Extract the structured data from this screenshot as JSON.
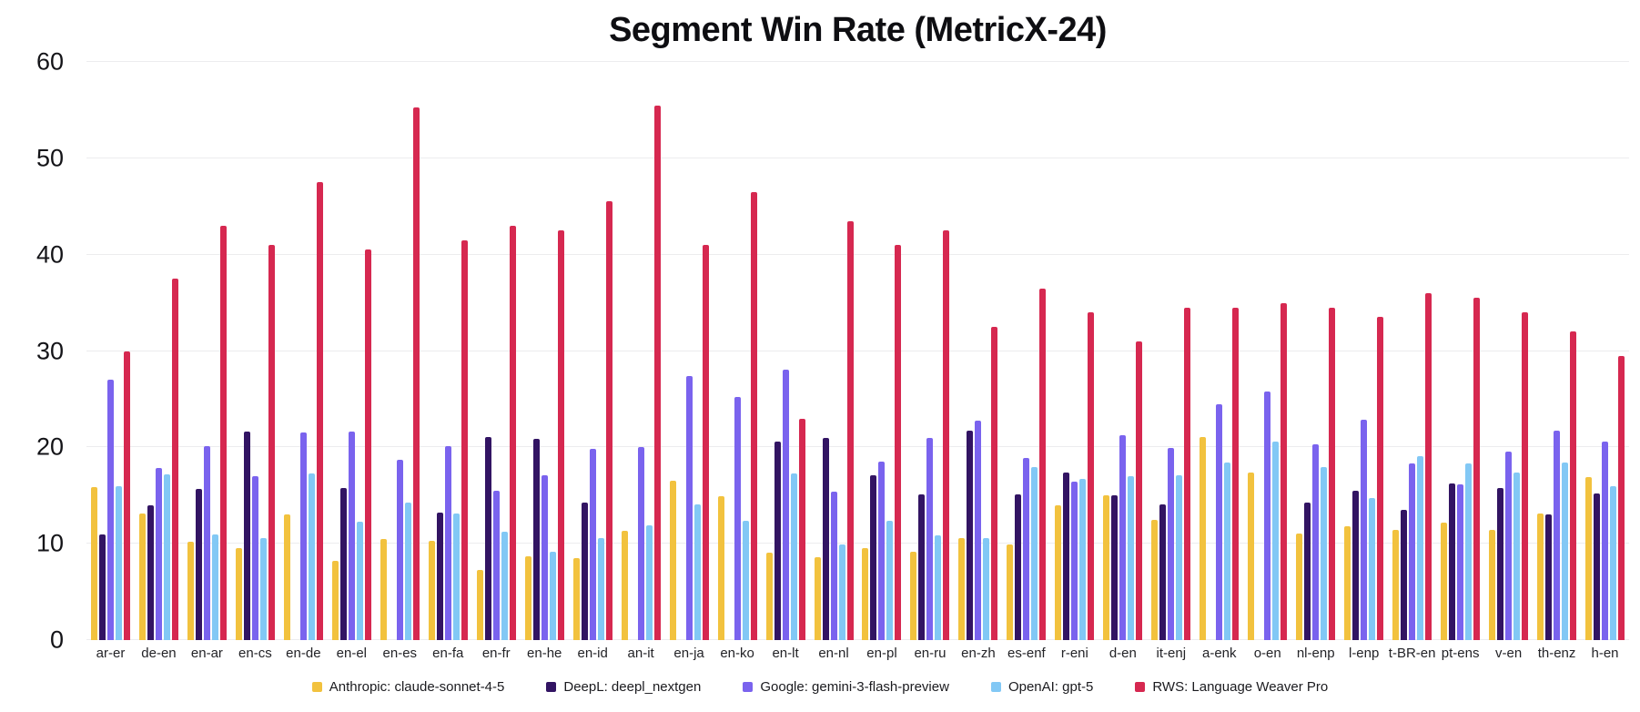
{
  "title": "Segment Win Rate (MetricX-24)",
  "chart_data": {
    "type": "bar",
    "title": "Segment Win Rate (MetricX-24)",
    "ylim": [
      0,
      60
    ],
    "yticks": [
      0,
      10,
      20,
      30,
      40,
      50,
      60
    ],
    "grid": true,
    "legend_position": "bottom",
    "categories": [
      "ar-er",
      "de-en",
      "en-ar",
      "en-cs",
      "en-de",
      "en-el",
      "en-es",
      "en-fa",
      "en-fr",
      "en-he",
      "en-id",
      "an-it",
      "en-ja",
      "en-ko",
      "en-lt",
      "en-nl",
      "en-pl",
      "en-ru",
      "en-zh",
      "es-enf",
      "r-eni",
      "d-en",
      "it-enj",
      "a-enk",
      "o-en",
      "nl-enp",
      "l-enp",
      "t-BR-en",
      "pt-ens",
      "v-en",
      "th-enz",
      "h-en"
    ],
    "series": [
      {
        "name": "Anthropic: claude-sonnet-4-5",
        "color": "#F2C23E",
        "values": [
          15.9,
          13.1,
          10.2,
          9.5,
          13.0,
          8.2,
          10.5,
          10.3,
          7.3,
          8.7,
          8.5,
          11.3,
          16.5,
          14.9,
          9.1,
          8.6,
          9.5,
          9.2,
          10.6,
          9.9,
          14.0,
          15.0,
          12.5,
          21.1,
          17.4,
          11.1,
          11.8,
          11.4,
          12.2,
          11.4,
          13.1,
          16.9
        ]
      },
      {
        "name": "DeepL: deepl_nextgen",
        "color": "#321463",
        "values": [
          11.0,
          14.0,
          15.7,
          21.6,
          null,
          15.8,
          null,
          13.2,
          21.1,
          20.9,
          14.3,
          null,
          null,
          null,
          20.6,
          21.0,
          17.1,
          15.1,
          21.7,
          15.1,
          17.4,
          15.0,
          14.1,
          null,
          null,
          14.3,
          15.5,
          13.5,
          16.3,
          15.8,
          13.0,
          15.2
        ]
      },
      {
        "name": "Google: gemini-3-flash-preview",
        "color": "#7A63EE",
        "values": [
          27.0,
          17.9,
          20.1,
          17.0,
          21.5,
          21.6,
          18.7,
          20.1,
          15.5,
          17.1,
          19.8,
          20.0,
          27.4,
          25.2,
          28.1,
          15.4,
          18.5,
          21.0,
          22.8,
          18.9,
          16.4,
          21.3,
          19.9,
          24.5,
          25.8,
          20.3,
          22.9,
          18.3,
          16.2,
          19.6,
          21.7,
          20.6
        ]
      },
      {
        "name": "OpenAI: gpt-5",
        "color": "#82C8F5",
        "values": [
          16.0,
          17.2,
          11.0,
          10.6,
          17.3,
          12.3,
          14.3,
          13.1,
          11.2,
          9.2,
          10.6,
          11.9,
          14.1,
          12.4,
          17.3,
          9.9,
          12.4,
          10.9,
          10.6,
          18.0,
          16.7,
          17.0,
          17.1,
          18.4,
          20.6,
          18.0,
          14.7,
          19.1,
          18.3,
          17.4,
          18.4,
          16.0
        ]
      },
      {
        "name": "RWS: Language Weaver Pro",
        "color": "#D62850",
        "values": [
          30.0,
          37.5,
          43.0,
          41.0,
          47.5,
          40.5,
          55.3,
          41.5,
          43.0,
          42.5,
          45.5,
          55.5,
          41.0,
          46.5,
          23.0,
          43.5,
          41.0,
          42.5,
          32.5,
          36.5,
          34.0,
          31.0,
          34.5,
          34.5,
          35.0,
          34.5,
          33.5,
          36.0,
          35.5,
          34.0,
          32.0,
          29.5
        ]
      }
    ]
  }
}
